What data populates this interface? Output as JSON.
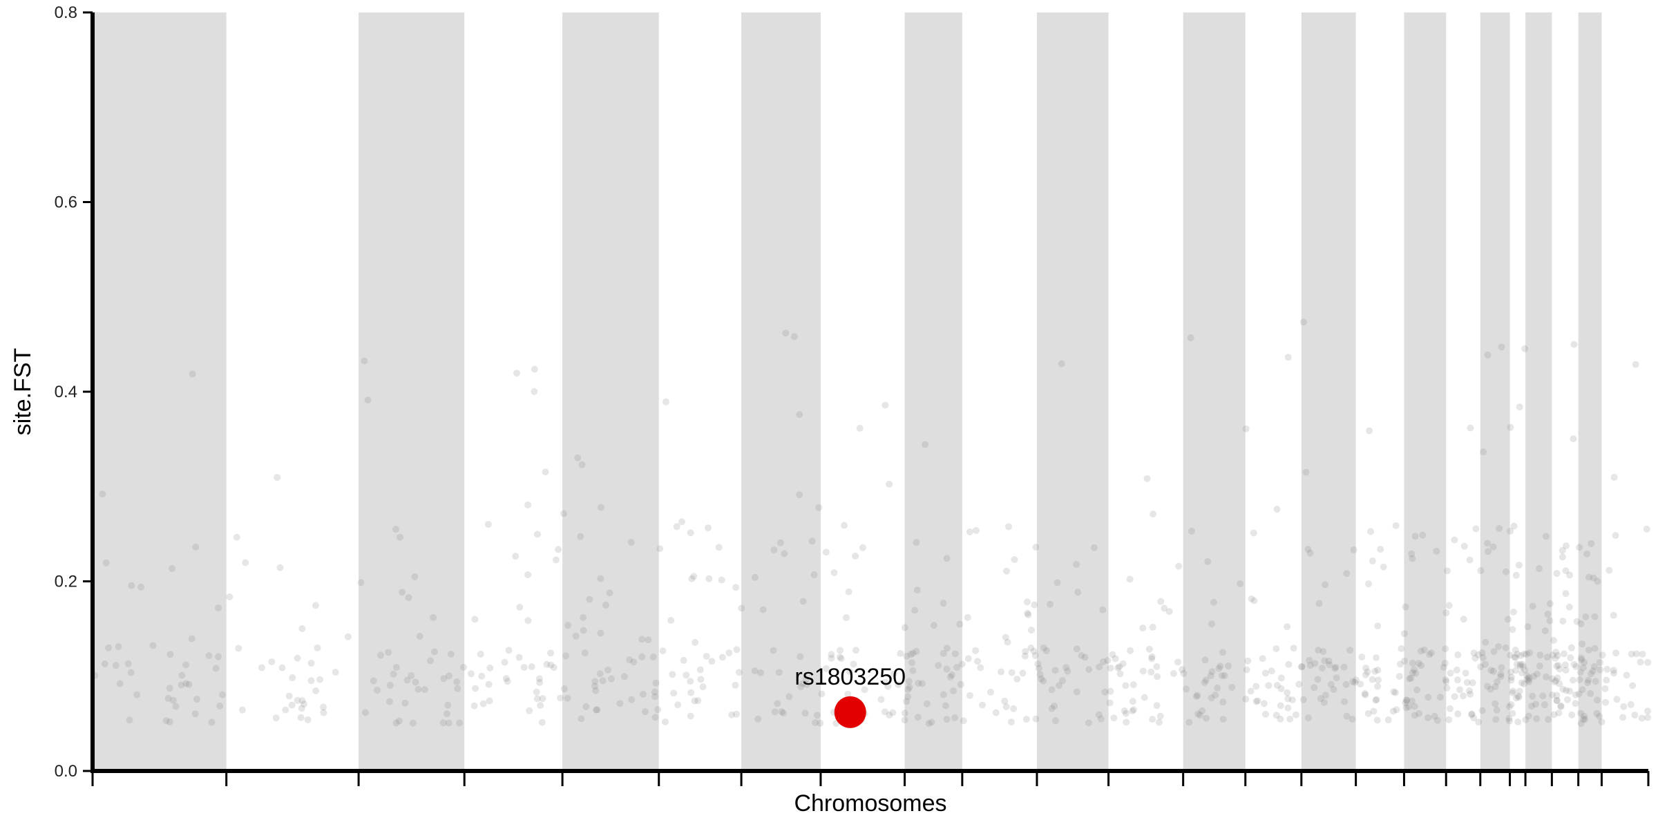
{
  "chart_data": {
    "type": "scatter",
    "title": "",
    "xlabel": "Chromosomes",
    "ylabel": "site.FST",
    "ylim": [
      0,
      0.8
    ],
    "y_ticks": [
      0.0,
      0.2,
      0.4,
      0.6,
      0.8
    ],
    "y_tick_labels": [
      "0.0",
      "0.2",
      "0.4",
      "0.6",
      "0.8"
    ],
    "x_tick_labels_shown": false,
    "shaded_bands": "alternating chromosomes shaded light grey",
    "chromosome_boundaries": [
      0,
      0.086,
      0.171,
      0.239,
      0.302,
      0.364,
      0.417,
      0.468,
      0.522,
      0.559,
      0.607,
      0.653,
      0.701,
      0.741,
      0.777,
      0.812,
      0.843,
      0.87,
      0.892,
      0.911,
      0.921,
      0.938,
      0.955,
      0.97,
      1.0
    ],
    "highlight": {
      "label": "rs1803250",
      "fst": 0.062,
      "x": 0.487,
      "color": "#e30000"
    },
    "point_color": "#777777",
    "n_background_points": 900
  }
}
